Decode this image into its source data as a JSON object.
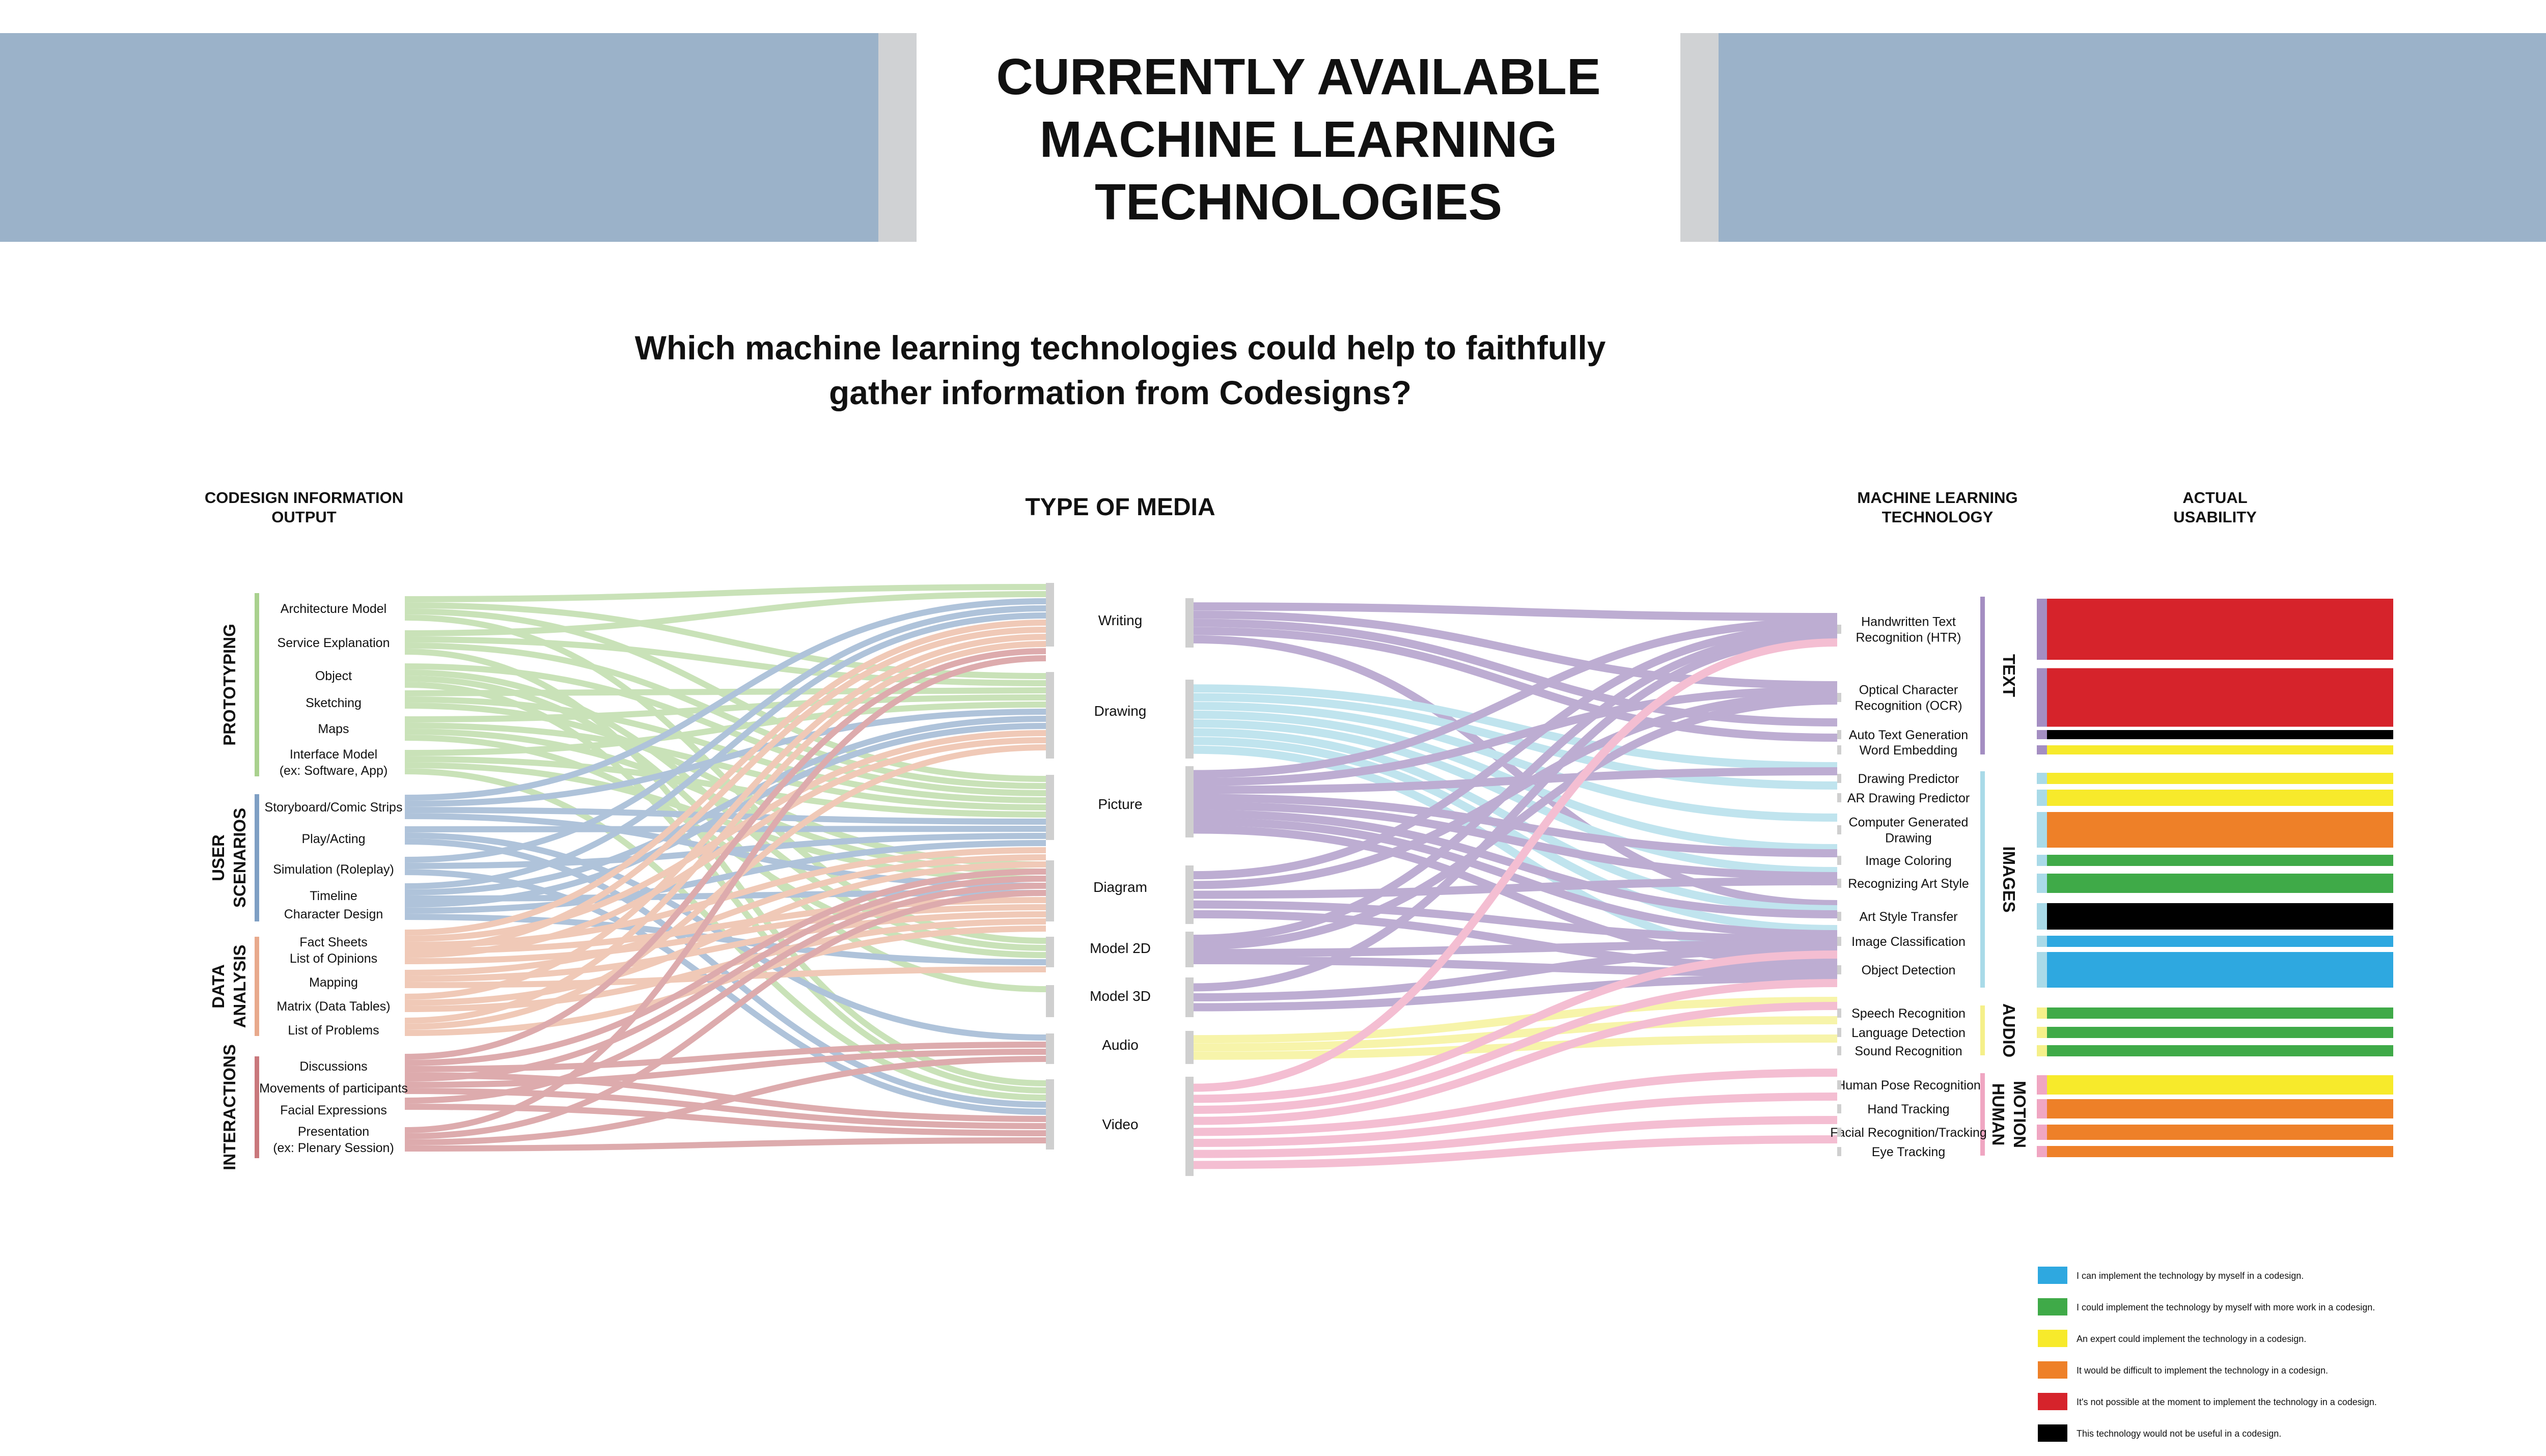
{
  "title_lines": [
    "CURRENTLY AVAILABLE",
    "MACHINE LEARNING",
    "TECHNOLOGIES"
  ],
  "question_lines": [
    "Which machine learning technologies could help to faithfully",
    "gather information from Codesigns?"
  ],
  "headers": {
    "output": [
      "CODESIGN INFORMATION",
      "OUTPUT"
    ],
    "media": "TYPE OF MEDIA",
    "tech": [
      "MACHINE LEARNING",
      "TECHNOLOGY"
    ],
    "usability": [
      "ACTUAL",
      "USABILITY"
    ]
  },
  "colors": {
    "banner": "#9bb2c9",
    "banner_edge": "#d0d2d4",
    "prototyping": "#a9d18e",
    "user_scenarios": "#7f9fc4",
    "data_analysis": "#e8a98c",
    "interactions": "#c9787c",
    "text_tech": "#a48ec2",
    "images_tech": "#a9dae8",
    "audio_tech": "#f5f08a",
    "human_motion": "#f0a6c2",
    "node_bar": "#cfcfcf"
  },
  "output_groups": [
    {
      "label": [
        "PROTOTYPING"
      ],
      "color": "#a9d18e",
      "items": [
        [
          "Architecture Model"
        ],
        [
          "Service Explanation"
        ],
        [
          "Object"
        ],
        [
          "Sketching"
        ],
        [
          "Maps"
        ],
        [
          "Interface Model",
          "(ex: Software, App)"
        ]
      ]
    },
    {
      "label": [
        "USER",
        "SCENARIOS"
      ],
      "color": "#7f9fc4",
      "items": [
        [
          "Storyboard/Comic Strips"
        ],
        [
          "Play/Acting"
        ],
        [
          "Simulation (Roleplay)"
        ],
        [
          "Timeline"
        ],
        [
          "Character Design"
        ]
      ]
    },
    {
      "label": [
        "DATA",
        "ANALYSIS"
      ],
      "color": "#e8a98c",
      "items": [
        [
          "Fact Sheets"
        ],
        [
          "List of Opinions"
        ],
        [
          "Mapping"
        ],
        [
          "Matrix (Data Tables)"
        ],
        [
          "List of Problems"
        ]
      ]
    },
    {
      "label": [
        "INTERACTIONS"
      ],
      "color": "#c9787c",
      "items": [
        [
          "Discussions"
        ],
        [
          "Movements of participants"
        ],
        [
          "Facial Expressions"
        ],
        [
          "Presentation",
          "(ex: Plenary Session)"
        ]
      ]
    }
  ],
  "media": [
    "Writing",
    "Drawing",
    "Picture",
    "Diagram",
    "Model 2D",
    "Model 3D",
    "Audio",
    "Video"
  ],
  "media_colors": [
    "#a48ec2",
    "#a9dae8",
    "#a48ec2",
    "#a48ec2",
    "#a48ec2",
    "#a48ec2",
    "#f5f08a",
    "#f0a6c2"
  ],
  "tech_groups": [
    {
      "label": "TEXT",
      "color": "#a48ec2",
      "items": [
        [
          "Handwritten Text",
          "Recognition (HTR)"
        ],
        [
          "Optical Character",
          "Recognition (OCR)"
        ],
        [
          "Auto Text Generation"
        ],
        [
          "Word Embedding"
        ]
      ]
    },
    {
      "label": "IMAGES",
      "color": "#a9dae8",
      "items": [
        [
          "Drawing Predictor"
        ],
        [
          "AR Drawing Predictor"
        ],
        [
          "Computer Generated",
          "Drawing"
        ],
        [
          "Image Coloring"
        ],
        [
          "Recognizing Art Style"
        ],
        [
          "Art Style Transfer"
        ],
        [
          "Image Classification"
        ],
        [
          "Object Detection"
        ]
      ]
    },
    {
      "label": "AUDIO",
      "color": "#f5f08a",
      "items": [
        [
          "Speech Recognition"
        ],
        [
          "Language Detection"
        ],
        [
          "Sound Recognition"
        ]
      ]
    },
    {
      "label": "HUMAN\nMOTION",
      "color": "#f0a6c2",
      "items": [
        [
          "Human Pose Recognition"
        ],
        [
          "Hand Tracking"
        ],
        [
          "Facial Recognition/Tracking"
        ],
        [
          "Eye Tracking"
        ]
      ]
    }
  ],
  "usability_levels": [
    4,
    4,
    5,
    2,
    2,
    2,
    3,
    1,
    1,
    5,
    0,
    0,
    1,
    1,
    1,
    2,
    3,
    3,
    3
  ],
  "legend": [
    {
      "color": "#2ea8e0",
      "text": "I can implement the technology by myself in a codesign."
    },
    {
      "color": "#3faa48",
      "text": "I could implement the technology by myself with more work in a codesign."
    },
    {
      "color": "#f7ea2b",
      "text": "An expert could implement the technology in a codesign."
    },
    {
      "color": "#ee8028",
      "text": "It would be difficult to implement the technology in a codesign."
    },
    {
      "color": "#d6232b",
      "text": "It's not possible at the moment to implement the technology in a codesign."
    },
    {
      "color": "#000000",
      "text": "This technology would not be useful in a codesign."
    }
  ]
}
